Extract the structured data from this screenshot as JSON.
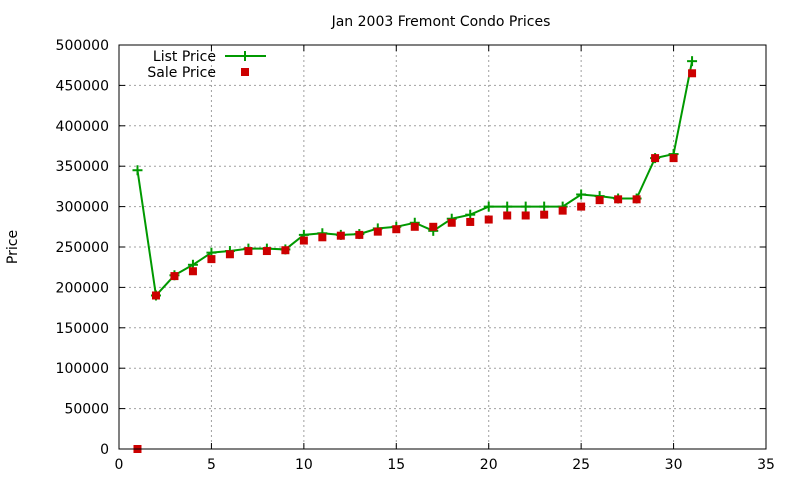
{
  "chart_data": {
    "type": "line",
    "title": "Jan 2003 Fremont Condo Prices",
    "xlabel": "",
    "ylabel": "Price",
    "xlim": [
      0,
      35
    ],
    "ylim": [
      0,
      500000
    ],
    "xticks": [
      0,
      5,
      10,
      15,
      20,
      25,
      30,
      35
    ],
    "yticks": [
      0,
      50000,
      100000,
      150000,
      200000,
      250000,
      300000,
      350000,
      400000,
      450000,
      500000
    ],
    "grid": true,
    "legend_position": "top-left",
    "series": [
      {
        "name": "List Price",
        "style": "line-with-plus-markers",
        "color": "#009900",
        "x": [
          1,
          2,
          3,
          4,
          5,
          6,
          7,
          8,
          9,
          10,
          11,
          12,
          13,
          14,
          15,
          16,
          17,
          18,
          19,
          20,
          21,
          22,
          23,
          24,
          25,
          26,
          27,
          28,
          29,
          30,
          31
        ],
        "y": [
          345000,
          190000,
          215000,
          228000,
          243000,
          245000,
          248000,
          248000,
          247000,
          265000,
          267000,
          265000,
          266000,
          273000,
          275000,
          280000,
          270000,
          285000,
          290000,
          300000,
          300000,
          300000,
          300000,
          300000,
          315000,
          313000,
          310000,
          310000,
          360000,
          365000,
          480000
        ]
      },
      {
        "name": "Sale Price",
        "style": "square-markers",
        "color": "#cc0000",
        "x": [
          1,
          2,
          3,
          4,
          5,
          6,
          7,
          8,
          9,
          10,
          11,
          12,
          13,
          14,
          15,
          16,
          17,
          18,
          19,
          20,
          21,
          22,
          23,
          24,
          25,
          26,
          27,
          28,
          29,
          30,
          31
        ],
        "y": [
          0,
          190000,
          214000,
          220000,
          235000,
          241000,
          245000,
          245000,
          246000,
          258000,
          262000,
          264000,
          265000,
          269000,
          272000,
          275000,
          275000,
          280000,
          281000,
          284000,
          289000,
          289000,
          290000,
          295000,
          300000,
          308000,
          309000,
          309000,
          360000,
          360000,
          465000
        ]
      }
    ]
  }
}
